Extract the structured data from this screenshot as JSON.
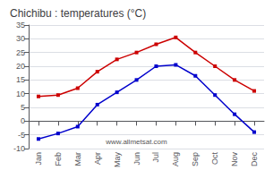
{
  "chart_data": {
    "type": "line",
    "title": "Chichibu : temperatures (°C)",
    "categories": [
      "Jan",
      "Feb",
      "Mar",
      "Apr",
      "May",
      "Jun",
      "Jul",
      "Aug",
      "Sep",
      "Oct",
      "Nov",
      "Dec"
    ],
    "series": [
      {
        "color": "#cc0000",
        "marker": "square",
        "values": [
          9,
          9.5,
          12,
          18,
          22.5,
          25,
          28,
          30.5,
          25,
          20,
          15,
          11
        ]
      },
      {
        "color": "#0000cc",
        "marker": "square",
        "values": [
          -6.5,
          -4.5,
          -2,
          6,
          10.5,
          15,
          20,
          20.5,
          16.5,
          9.5,
          2.5,
          -4
        ]
      }
    ],
    "ylim": [
      -10,
      35
    ],
    "yticks": [
      -10,
      -5,
      0,
      5,
      10,
      15,
      20,
      25,
      30,
      35
    ],
    "grid": true,
    "annotations": [
      "www.allmetsat.com"
    ]
  }
}
